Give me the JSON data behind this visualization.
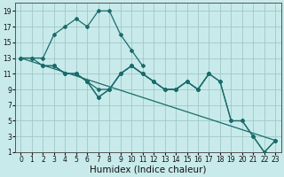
{
  "xlabel": "Humidex (Indice chaleur)",
  "xlim": [
    -0.5,
    23.5
  ],
  "ylim": [
    1,
    20
  ],
  "xticks": [
    0,
    1,
    2,
    3,
    4,
    5,
    6,
    7,
    8,
    9,
    10,
    11,
    12,
    13,
    14,
    15,
    16,
    17,
    18,
    19,
    20,
    21,
    22,
    23
  ],
  "yticks": [
    1,
    3,
    5,
    7,
    9,
    11,
    13,
    15,
    17,
    19
  ],
  "background_color": "#c8eaea",
  "grid_color": "#a0c8c8",
  "line_color": "#1a6b6b",
  "lines": [
    {
      "x": [
        0,
        1,
        2,
        3,
        4,
        5,
        6,
        7,
        8,
        9,
        10,
        11
      ],
      "y": [
        13,
        13,
        13,
        16,
        17,
        18,
        17,
        19,
        19,
        16,
        14,
        12
      ]
    },
    {
      "x": [
        0,
        1,
        2,
        3,
        4,
        5,
        6,
        7,
        8,
        9,
        10,
        11,
        12,
        13,
        14,
        15,
        16,
        17
      ],
      "y": [
        13,
        13,
        12,
        12,
        11,
        11,
        10,
        8,
        9,
        11,
        12,
        11,
        10,
        9,
        9,
        10,
        9,
        11
      ]
    },
    {
      "x": [
        2,
        3,
        4,
        5,
        6,
        7,
        8,
        9,
        10,
        11,
        12,
        13,
        14,
        15,
        16,
        17,
        18,
        19,
        20,
        21,
        22,
        23
      ],
      "y": [
        12,
        12,
        11,
        11,
        10,
        8,
        9,
        11,
        12,
        11,
        10,
        9,
        9,
        10,
        9,
        11,
        10,
        5,
        5,
        3,
        1,
        2.5
      ]
    },
    {
      "x": [
        2,
        3,
        4,
        5,
        6,
        7,
        8,
        9,
        10,
        11,
        12,
        13,
        14,
        15,
        16,
        17,
        18,
        19,
        20,
        21,
        22,
        23
      ],
      "y": [
        12,
        12,
        11,
        11,
        10,
        9,
        9,
        11,
        12,
        11,
        10,
        9,
        9,
        10,
        9,
        11,
        10,
        5,
        5,
        3,
        1,
        2.5
      ]
    },
    {
      "x": [
        0,
        23
      ],
      "y": [
        13,
        2.5
      ]
    }
  ],
  "tick_fontsize": 5.5,
  "label_fontsize": 7.5
}
